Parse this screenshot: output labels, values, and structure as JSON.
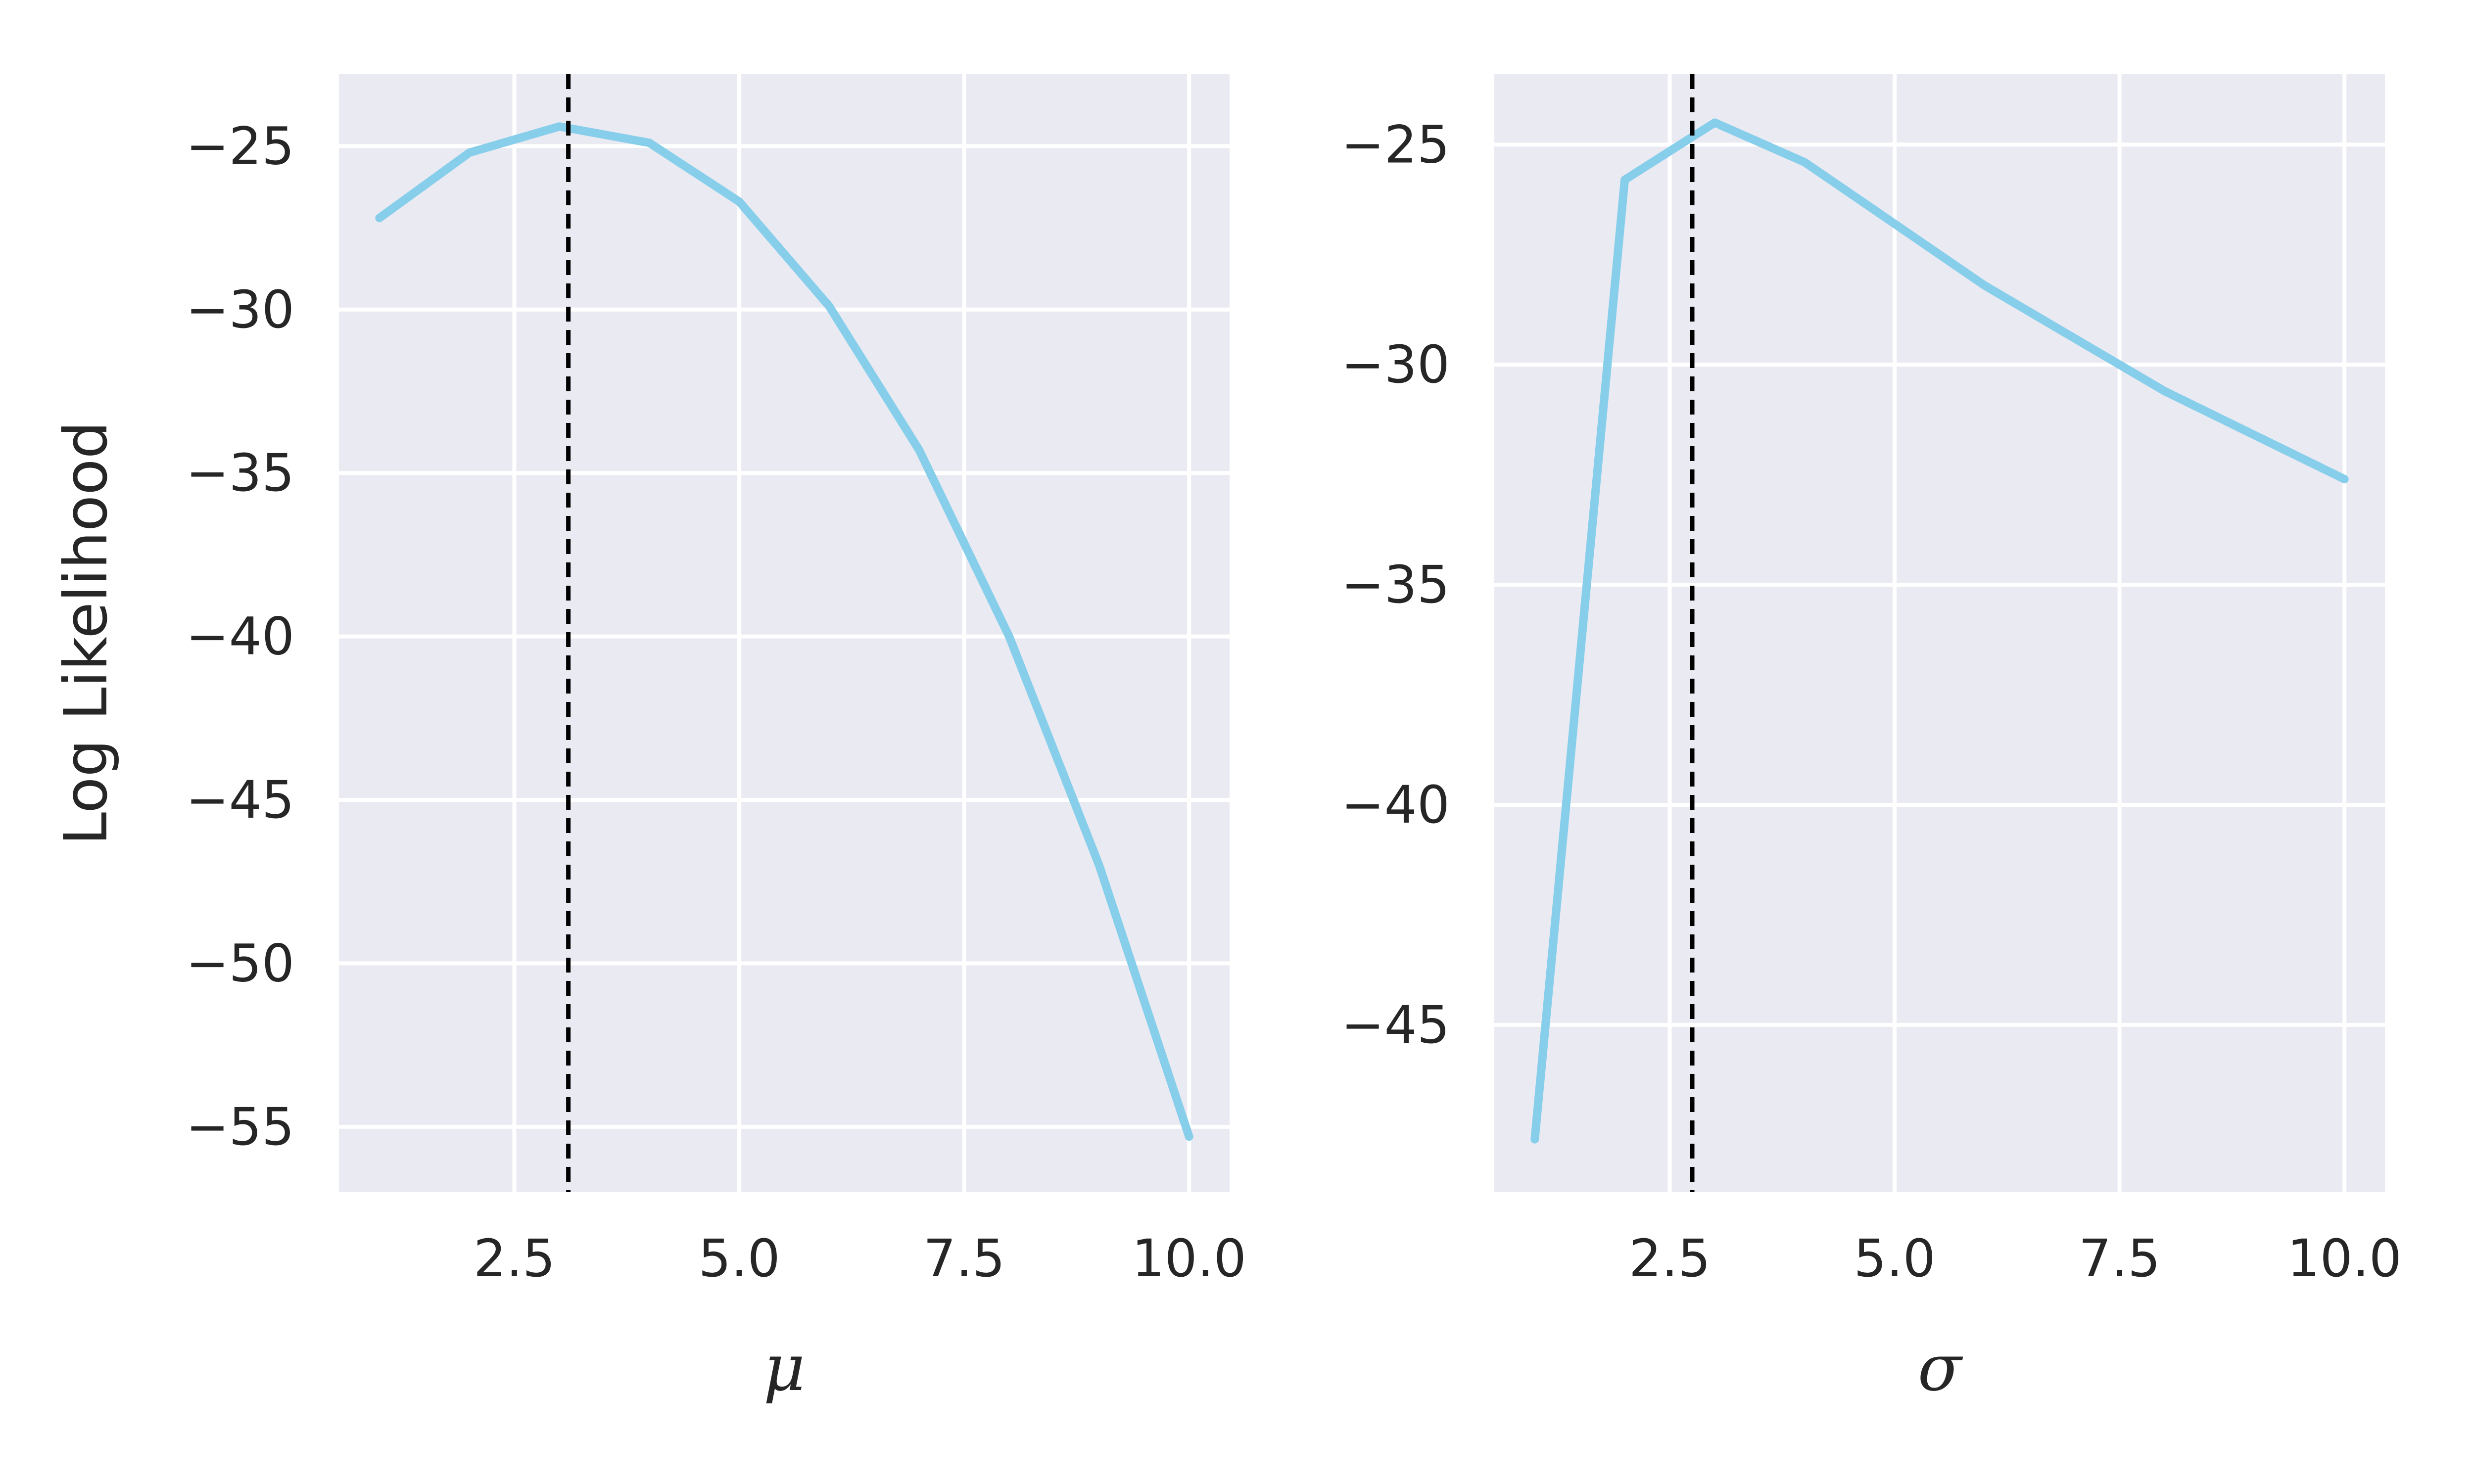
{
  "chart_data": [
    {
      "type": "line",
      "title": "",
      "xlabel": "μ",
      "ylabel": "Log Likelihood",
      "xlim": [
        0.55,
        10.45
      ],
      "ylim": [
        -57,
        -22.8
      ],
      "xticks": [
        2.5,
        5.0,
        7.5,
        10.0
      ],
      "xtick_labels": [
        "2.5",
        "5.0",
        "7.5",
        "10.0"
      ],
      "yticks": [
        -25,
        -30,
        -35,
        -40,
        -45,
        -50,
        -55
      ],
      "ytick_labels": [
        "−25",
        "−30",
        "−35",
        "−40",
        "−45",
        "−50",
        "−55"
      ],
      "grid": true,
      "series": [
        {
          "color": "#87ceeb",
          "x": [
            1,
            2,
            3,
            4,
            5,
            6,
            7,
            8,
            9,
            10
          ],
          "y": [
            -27.2,
            -25.2,
            -24.4,
            -24.9,
            -26.7,
            -29.9,
            -34.3,
            -40.0,
            -47.0,
            -55.3
          ]
        }
      ],
      "vline": {
        "x": 3.1,
        "style": "dashed",
        "color": "#000000"
      }
    },
    {
      "type": "line",
      "title": "",
      "xlabel": "σ",
      "ylabel": "",
      "xlim": [
        0.55,
        10.45
      ],
      "ylim": [
        -48.8,
        -23.4
      ],
      "xticks": [
        2.5,
        5.0,
        7.5,
        10.0
      ],
      "xtick_labels": [
        "2.5",
        "5.0",
        "7.5",
        "10.0"
      ],
      "yticks": [
        -25,
        -30,
        -35,
        -40,
        -45
      ],
      "ytick_labels": [
        "−25",
        "−30",
        "−35",
        "−40",
        "−45"
      ],
      "grid": true,
      "series": [
        {
          "color": "#87ceeb",
          "x": [
            1,
            2,
            3,
            4,
            5,
            6,
            7,
            8,
            9,
            10
          ],
          "y": [
            -47.6,
            -25.8,
            -24.5,
            -25.4,
            -26.8,
            -28.2,
            -29.4,
            -30.6,
            -31.6,
            -32.6
          ]
        }
      ],
      "vline": {
        "x": 2.75,
        "style": "dashed",
        "color": "#000000"
      }
    }
  ],
  "colors": {
    "panel_background": "#eaeaf2",
    "grid": "#ffffff",
    "text": "#262626"
  }
}
